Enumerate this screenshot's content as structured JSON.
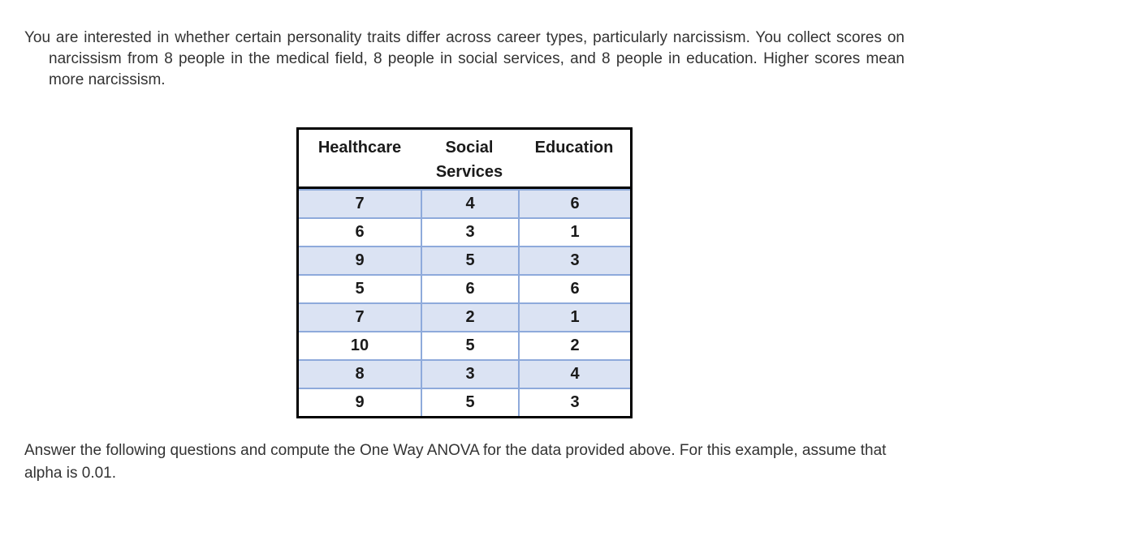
{
  "intro": {
    "text": "You are interested in whether certain personality traits differ across career types, particularly narcissism. You collect scores on narcissism from 8 people in the medical field, 8 people in social services, and 8 people in education. Higher scores mean more narcissism."
  },
  "table": {
    "columns": [
      "Healthcare",
      "Social Services",
      "Education"
    ],
    "rows": [
      [
        "7",
        "4",
        "6"
      ],
      [
        "6",
        "3",
        "1"
      ],
      [
        "9",
        "5",
        "3"
      ],
      [
        "5",
        "6",
        "6"
      ],
      [
        "7",
        "2",
        "1"
      ],
      [
        "10",
        "5",
        "2"
      ],
      [
        "8",
        "3",
        "4"
      ],
      [
        "9",
        "5",
        "3"
      ]
    ]
  },
  "outro": {
    "text": "Answer the following questions and compute the One Way ANOVA for the data provided above. For this example, assume that alpha is 0.01."
  },
  "colors": {
    "row_shade": "#dbe3f3",
    "cell_border": "#8eaadb",
    "table_border": "#000000",
    "text_color": "#333333"
  }
}
